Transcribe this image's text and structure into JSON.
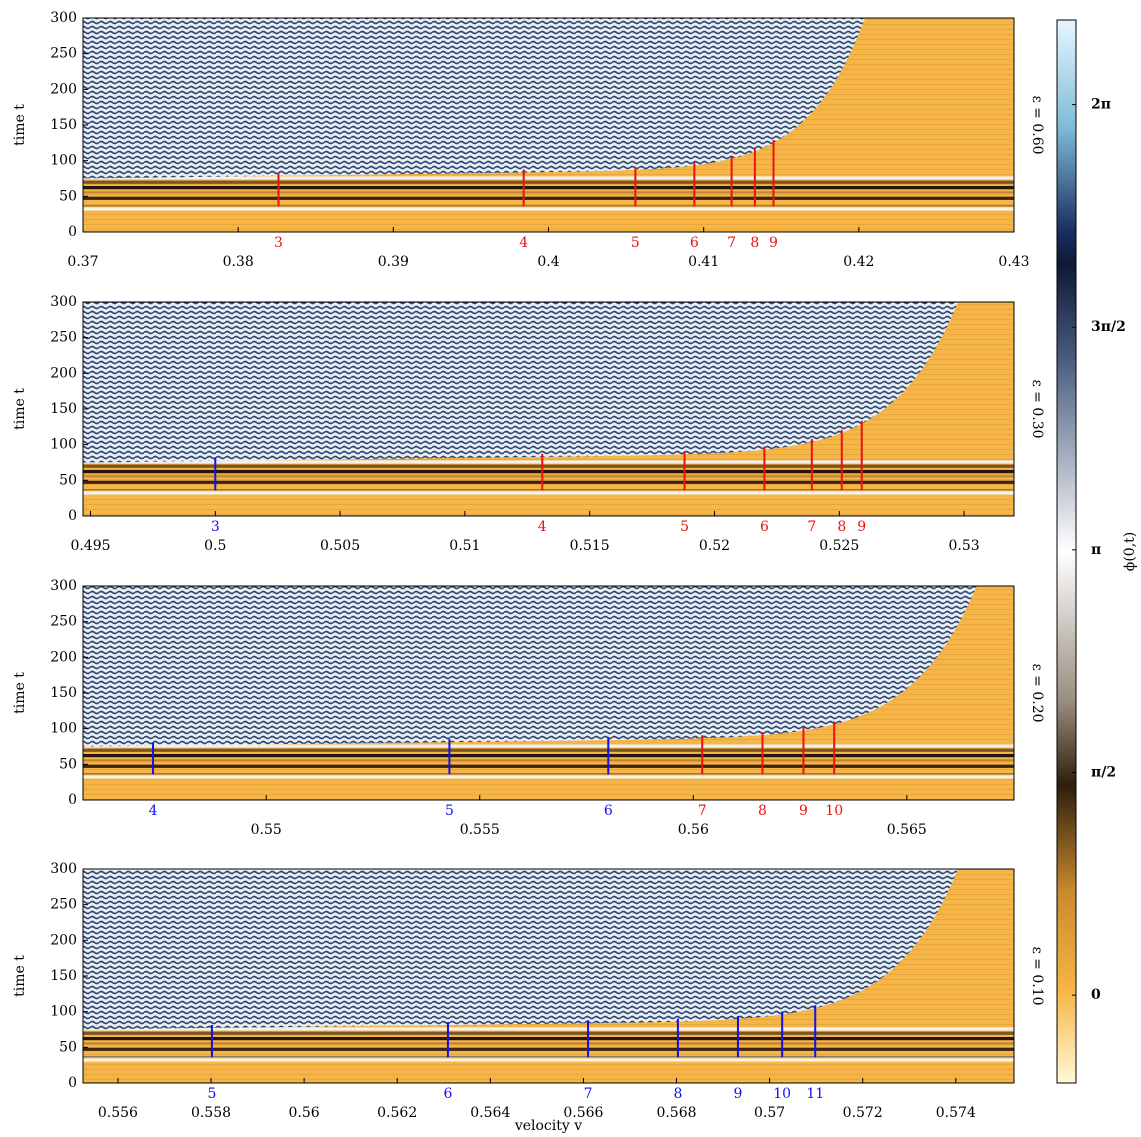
{
  "chart_data": [
    {
      "type": "heatmap",
      "ylabel": "time t",
      "side_label": "ε = 0.60",
      "xlim": [
        0.37,
        0.43
      ],
      "xticks": [
        0.37,
        0.38,
        0.39,
        0.4,
        0.41,
        0.42,
        0.43
      ],
      "ylim": [
        0,
        300
      ],
      "yticks": [
        0,
        50,
        100,
        150,
        200,
        250,
        300
      ],
      "markers": [
        {
          "color": "#ee1111",
          "x": [
            0.3826,
            0.3984,
            0.4056,
            0.4094,
            0.4118,
            0.4133,
            0.4145
          ],
          "labels": [
            3,
            4,
            5,
            6,
            7,
            8,
            9
          ]
        }
      ]
    },
    {
      "type": "heatmap",
      "ylabel": "time t",
      "side_label": "ε = 0.30",
      "xlim": [
        0.4947,
        0.532
      ],
      "xticks": [
        0.495,
        0.5,
        0.505,
        0.51,
        0.515,
        0.52,
        0.525,
        0.53
      ],
      "ylim": [
        0,
        300
      ],
      "yticks": [
        0,
        50,
        100,
        150,
        200,
        250,
        300
      ],
      "markers": [
        {
          "color": "#1111ee",
          "x": [
            0.5
          ],
          "labels": [
            3
          ]
        },
        {
          "color": "#ee1111",
          "x": [
            0.5131,
            0.5188,
            0.522,
            0.5239,
            0.5251,
            0.5259
          ],
          "labels": [
            4,
            5,
            6,
            7,
            8,
            9
          ]
        }
      ]
    },
    {
      "type": "heatmap",
      "ylabel": "time t",
      "side_label": "ε = 0.20",
      "xlim": [
        0.54571,
        0.56751
      ],
      "xticks": [
        0.55,
        0.555,
        0.56,
        0.565
      ],
      "ylim": [
        0,
        300
      ],
      "yticks": [
        0,
        50,
        100,
        150,
        200,
        250,
        300
      ],
      "markers": [
        {
          "color": "#1111ee",
          "x": [
            0.54735,
            0.55429,
            0.55801
          ],
          "labels": [
            4,
            5,
            6
          ]
        },
        {
          "color": "#ee1111",
          "x": [
            0.56021,
            0.56162,
            0.56258,
            0.5633
          ],
          "labels": [
            7,
            8,
            9,
            10
          ]
        }
      ]
    },
    {
      "type": "heatmap",
      "ylabel": "time t",
      "side_label": "ε = 0.10",
      "xlabel": "velocity v",
      "xlim": [
        0.55525,
        0.57525
      ],
      "xticks": [
        0.556,
        0.558,
        0.56,
        0.562,
        0.564,
        0.566,
        0.568,
        0.57,
        0.572,
        0.574
      ],
      "ylim": [
        0,
        300
      ],
      "yticks": [
        0,
        50,
        100,
        150,
        200,
        250,
        300
      ],
      "markers": [
        {
          "color": "#1111ee",
          "x": [
            0.55802,
            0.56309,
            0.5661,
            0.56803,
            0.56932,
            0.57027,
            0.57098
          ],
          "labels": [
            5,
            6,
            7,
            8,
            9,
            10,
            11
          ]
        }
      ]
    },
    {
      "type": "colorbar",
      "label": "ϕ(0,t)",
      "ylim": [
        -0.62,
        6.88
      ],
      "yticks": [
        0,
        {
          "value": 1.5708,
          "label": "π/2"
        },
        {
          "value": 3.1416,
          "label": "π"
        },
        {
          "value": 4.7124,
          "label": "3π/2"
        },
        {
          "value": 6.2832,
          "label": "2π"
        }
      ]
    }
  ]
}
